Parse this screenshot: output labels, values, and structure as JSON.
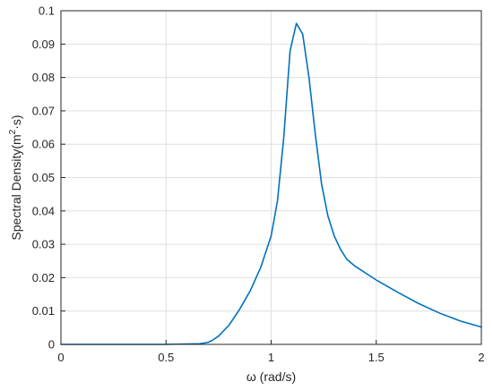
{
  "chart_data": {
    "type": "line",
    "xlabel": "ω (rad/s)",
    "ylabel_main": "Spectral Density(m",
    "ylabel_sup": "2",
    "ylabel_tail": "·s)",
    "xlim": [
      0,
      2
    ],
    "ylim": [
      0,
      0.1
    ],
    "xticks": [
      0,
      0.5,
      1,
      1.5,
      2
    ],
    "xtick_labels": [
      "0",
      "0.5",
      "1",
      "1.5",
      "2"
    ],
    "yticks": [
      0,
      0.01,
      0.02,
      0.03,
      0.04,
      0.05,
      0.06,
      0.07,
      0.08,
      0.09,
      0.1
    ],
    "ytick_labels": [
      "0",
      "0.01",
      "0.02",
      "0.03",
      "0.04",
      "0.05",
      "0.06",
      "0.07",
      "0.08",
      "0.09",
      "0.1"
    ],
    "grid": true,
    "colors": {
      "series": "#0072bd",
      "axis": "#262626",
      "grid": "#dfdfdf"
    },
    "series": [
      {
        "x": [
          0,
          0.5,
          0.66,
          0.7,
          0.72,
          0.75,
          0.8,
          0.85,
          0.9,
          0.95,
          1.0,
          1.03,
          1.06,
          1.09,
          1.12,
          1.15,
          1.18,
          1.21,
          1.24,
          1.27,
          1.3,
          1.33,
          1.36,
          1.4,
          1.5,
          1.6,
          1.7,
          1.8,
          1.9,
          2.0
        ],
        "y": [
          0,
          0,
          0.0002,
          0.0006,
          0.0012,
          0.0025,
          0.0058,
          0.0105,
          0.016,
          0.023,
          0.0325,
          0.043,
          0.062,
          0.088,
          0.0962,
          0.093,
          0.08,
          0.063,
          0.048,
          0.0385,
          0.0325,
          0.0285,
          0.0255,
          0.0234,
          0.0193,
          0.0157,
          0.0123,
          0.0094,
          0.007,
          0.0052
        ]
      }
    ]
  }
}
